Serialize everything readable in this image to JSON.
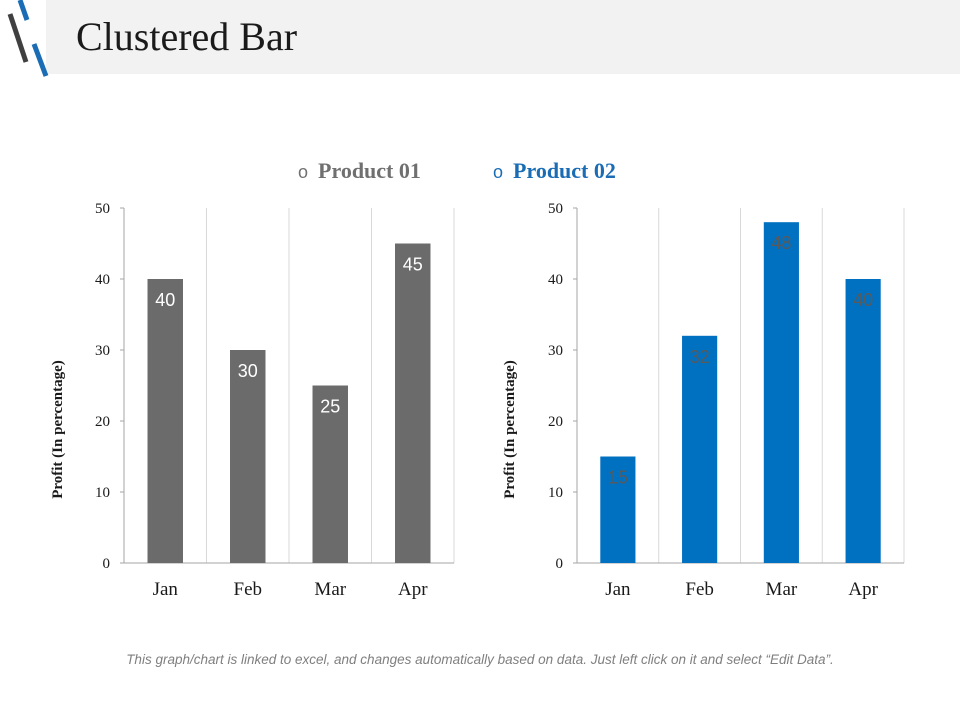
{
  "title": "Clustered Bar",
  "footer_note": "This graph/chart is linked to excel, and changes automatically based on data. Just left click on it and select “Edit Data”.",
  "legend": [
    {
      "label": "Product 01",
      "marker": "o",
      "color": "#6b6b6b"
    },
    {
      "label": "Product 02",
      "marker": "o",
      "color": "#0070c0"
    }
  ],
  "chart_data": [
    {
      "type": "bar",
      "series_name": "Product 01",
      "categories": [
        "Jan",
        "Feb",
        "Mar",
        "Apr"
      ],
      "values": [
        40,
        30,
        25,
        45
      ],
      "ylabel": "Profit  (In percentage)",
      "ylim": [
        0,
        50
      ],
      "yticks": [
        0,
        10,
        20,
        30,
        40,
        50
      ],
      "color": "#6b6b6b",
      "label_color": "#ffffff"
    },
    {
      "type": "bar",
      "series_name": "Product 02",
      "categories": [
        "Jan",
        "Feb",
        "Mar",
        "Apr"
      ],
      "values": [
        15,
        32,
        48,
        40
      ],
      "ylabel": "Profit  (In percentage)",
      "ylim": [
        0,
        50
      ],
      "yticks": [
        0,
        10,
        20,
        30,
        40,
        50
      ],
      "color": "#0070c0",
      "label_color": "#5a5a5a"
    }
  ]
}
